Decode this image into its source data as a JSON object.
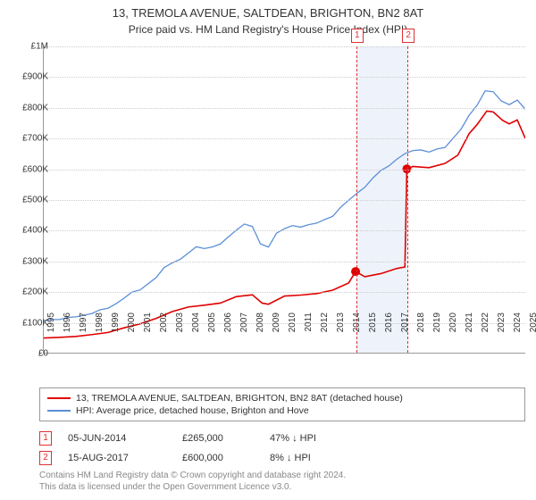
{
  "title": "13, TREMOLA AVENUE, SALTDEAN, BRIGHTON, BN2 8AT",
  "subtitle": "Price paid vs. HM Land Registry's House Price Index (HPI)",
  "chart": {
    "type": "line",
    "background_color": "#ffffff",
    "grid_color": "#cccccc",
    "axis_color": "#999999",
    "label_fontsize": 10,
    "label_color": "#333333",
    "ylim": [
      0,
      1000000
    ],
    "ytick_step": 100000,
    "yticks": [
      "£0",
      "£100K",
      "£200K",
      "£300K",
      "£400K",
      "£500K",
      "£600K",
      "£700K",
      "£800K",
      "£900K",
      "£1M"
    ],
    "xlim": [
      1995,
      2025
    ],
    "xticks": [
      1995,
      1996,
      1997,
      1998,
      1999,
      2000,
      2001,
      2002,
      2003,
      2004,
      2005,
      2006,
      2007,
      2008,
      2009,
      2010,
      2011,
      2012,
      2013,
      2014,
      2015,
      2016,
      2017,
      2018,
      2019,
      2020,
      2021,
      2022,
      2023,
      2024,
      2025
    ],
    "markers": [
      {
        "n": "1",
        "x": 2014.43,
        "color": "#e03030",
        "dash": true
      },
      {
        "n": "2",
        "x": 2017.62,
        "color": "#e03030",
        "dash": true
      }
    ],
    "marker_band": {
      "from": 2014.43,
      "to": 2017.62,
      "color": "#eef2fa"
    },
    "series": [
      {
        "name": "hpi",
        "label": "HPI: Average price, detached house, Brighton and Hove",
        "color": "#5b8fd6",
        "width": 1.3,
        "data": [
          [
            1995,
            105000
          ],
          [
            1995.5,
            108000
          ],
          [
            1996,
            108000
          ],
          [
            1996.5,
            115000
          ],
          [
            1997,
            117000
          ],
          [
            1997.5,
            122000
          ],
          [
            1998,
            128000
          ],
          [
            1998.5,
            140000
          ],
          [
            1999,
            145000
          ],
          [
            1999.5,
            160000
          ],
          [
            2000,
            178000
          ],
          [
            2000.5,
            198000
          ],
          [
            2001,
            205000
          ],
          [
            2001.5,
            225000
          ],
          [
            2002,
            245000
          ],
          [
            2002.5,
            278000
          ],
          [
            2003,
            293000
          ],
          [
            2003.5,
            305000
          ],
          [
            2004,
            325000
          ],
          [
            2004.5,
            346000
          ],
          [
            2005,
            340000
          ],
          [
            2005.5,
            345000
          ],
          [
            2006,
            355000
          ],
          [
            2006.5,
            378000
          ],
          [
            2007,
            400000
          ],
          [
            2007.5,
            420000
          ],
          [
            2008,
            412000
          ],
          [
            2008.5,
            355000
          ],
          [
            2009,
            345000
          ],
          [
            2009.5,
            390000
          ],
          [
            2010,
            405000
          ],
          [
            2010.5,
            415000
          ],
          [
            2011,
            410000
          ],
          [
            2011.5,
            418000
          ],
          [
            2012,
            423000
          ],
          [
            2012.5,
            435000
          ],
          [
            2013,
            445000
          ],
          [
            2013.5,
            475000
          ],
          [
            2014,
            498000
          ],
          [
            2014.5,
            520000
          ],
          [
            2015,
            540000
          ],
          [
            2015.5,
            570000
          ],
          [
            2016,
            595000
          ],
          [
            2016.5,
            610000
          ],
          [
            2017,
            632000
          ],
          [
            2017.5,
            650000
          ],
          [
            2018,
            660000
          ],
          [
            2018.5,
            662000
          ],
          [
            2019,
            655000
          ],
          [
            2019.5,
            665000
          ],
          [
            2020,
            670000
          ],
          [
            2020.5,
            700000
          ],
          [
            2021,
            730000
          ],
          [
            2021.5,
            775000
          ],
          [
            2022,
            808000
          ],
          [
            2022.5,
            855000
          ],
          [
            2023,
            852000
          ],
          [
            2023.5,
            822000
          ],
          [
            2024,
            810000
          ],
          [
            2024.5,
            825000
          ],
          [
            2025,
            795000
          ]
        ]
      },
      {
        "name": "price_paid",
        "label": "13, TREMOLA AVENUE, SALTDEAN, BRIGHTON, BN2 8AT (detached house)",
        "color": "#e00000",
        "width": 1.6,
        "data": [
          [
            1995,
            48000
          ],
          [
            1996,
            50000
          ],
          [
            1997,
            53000
          ],
          [
            1998,
            59000
          ],
          [
            1999,
            66000
          ],
          [
            2000,
            81000
          ],
          [
            2001,
            94000
          ],
          [
            2002,
            112000
          ],
          [
            2003,
            134000
          ],
          [
            2004,
            149000
          ],
          [
            2005,
            155000
          ],
          [
            2006,
            162000
          ],
          [
            2007,
            183000
          ],
          [
            2008,
            189000
          ],
          [
            2008.6,
            162000
          ],
          [
            2009,
            158000
          ],
          [
            2010,
            185000
          ],
          [
            2011,
            188000
          ],
          [
            2012,
            193000
          ],
          [
            2013,
            204000
          ],
          [
            2014,
            228000
          ],
          [
            2014.43,
            265000
          ],
          [
            2015,
            248000
          ],
          [
            2016,
            258000
          ],
          [
            2017,
            275000
          ],
          [
            2017.5,
            280000
          ],
          [
            2017.62,
            600000
          ],
          [
            2018,
            608000
          ],
          [
            2019,
            604000
          ],
          [
            2020,
            618000
          ],
          [
            2020.8,
            645000
          ],
          [
            2021.5,
            715000
          ],
          [
            2022,
            745000
          ],
          [
            2022.6,
            789000
          ],
          [
            2023,
            786000
          ],
          [
            2023.6,
            758000
          ],
          [
            2024,
            747000
          ],
          [
            2024.5,
            760000
          ],
          [
            2025,
            700000
          ]
        ]
      }
    ],
    "marker_points": [
      {
        "x": 2014.43,
        "y": 265000,
        "color": "#e00000",
        "size": 5
      },
      {
        "x": 2017.62,
        "y": 600000,
        "color": "#e00000",
        "size": 5
      }
    ]
  },
  "legend": {
    "border_color": "#999999",
    "fontsize": 10.5,
    "items": [
      {
        "color": "#e00000",
        "label": "13, TREMOLA AVENUE, SALTDEAN, BRIGHTON, BN2 8AT (detached house)"
      },
      {
        "color": "#5b8fd6",
        "label": "HPI: Average price, detached house, Brighton and Hove"
      }
    ]
  },
  "sales": [
    {
      "n": "1",
      "date": "05-JUN-2014",
      "price": "£265,000",
      "diff": "47% ↓ HPI"
    },
    {
      "n": "2",
      "date": "15-AUG-2017",
      "price": "£600,000",
      "diff": "8% ↓ HPI"
    }
  ],
  "footnote": {
    "line1": "Contains HM Land Registry data © Crown copyright and database right 2024.",
    "line2": "This data is licensed under the Open Government Licence v3.0."
  }
}
